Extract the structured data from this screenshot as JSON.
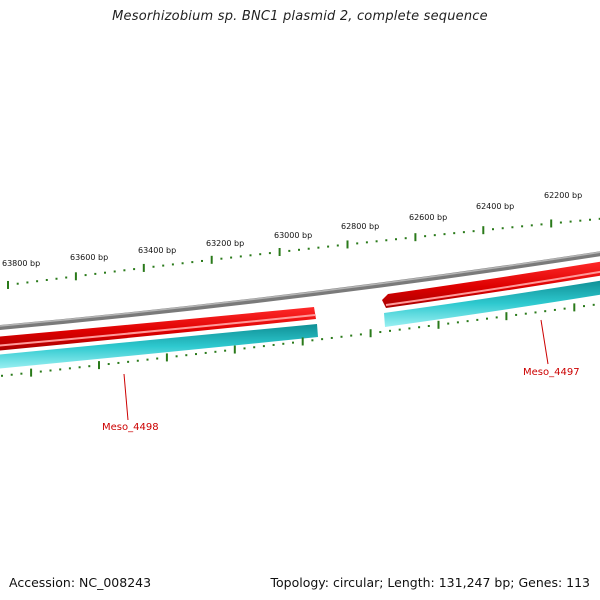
{
  "title": "Mesorhizobium sp. BNC1 plasmid 2, complete sequence",
  "footer": {
    "accession": "Accession: NC_008243",
    "summary": "Topology: circular; Length: 131,247 bp; Genes: 113"
  },
  "ruler": {
    "labels": [
      "63800 bp",
      "63600 bp",
      "63400 bp",
      "63200 bp",
      "63000 bp",
      "62800 bp",
      "62600 bp",
      "62400 bp",
      "62200 bp"
    ]
  },
  "genes": [
    {
      "label": "Meso_4498",
      "strand": "plus"
    },
    {
      "label": "Meso_4497",
      "strand": "plus"
    }
  ],
  "colors": {
    "title": "#222222",
    "backbone": "#8a8a8a",
    "gene": "#e00000",
    "gene_highlight": "#ff8888",
    "cds": "#1aa3a8",
    "cds_light": "#7fe3e6",
    "tick": "#2a7a1a",
    "gene_label": "#cc0000"
  }
}
